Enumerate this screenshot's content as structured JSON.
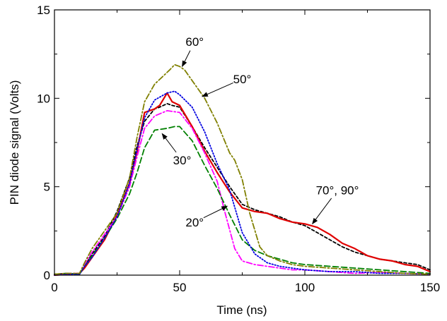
{
  "chart_data": {
    "type": "line",
    "xlabel": "Time (ns)",
    "ylabel": "PIN diode signal (Volts)",
    "xlim": [
      0,
      150
    ],
    "ylim": [
      0,
      15
    ],
    "xticks": [
      0,
      50,
      100,
      150
    ],
    "yticks": [
      0,
      5,
      10,
      15
    ],
    "grid": false,
    "series": [
      {
        "id": "70-90",
        "color": "#000000",
        "style": "dash-short",
        "x": [
          0,
          5,
          10,
          12,
          15,
          20,
          25,
          30,
          33,
          36,
          40,
          42,
          45,
          47,
          50,
          55,
          60,
          65,
          70,
          75,
          80,
          85,
          90,
          95,
          100,
          105,
          110,
          115,
          120,
          125,
          130,
          135,
          140,
          145,
          150
        ],
        "y": [
          0.05,
          0.1,
          0.05,
          0.5,
          1.2,
          2.2,
          3.6,
          5.5,
          7.3,
          8.7,
          9.4,
          9.5,
          9.7,
          9.6,
          9.5,
          8.4,
          7.2,
          6.1,
          5.0,
          4.0,
          3.7,
          3.5,
          3.3,
          3.0,
          2.8,
          2.4,
          2.0,
          1.6,
          1.3,
          1.1,
          0.9,
          0.8,
          0.7,
          0.6,
          0.3
        ]
      },
      {
        "id": "70-90b",
        "color": "#e00000",
        "style": "solid",
        "x": [
          0,
          5,
          10,
          12,
          15,
          20,
          25,
          30,
          33,
          36,
          40,
          42,
          45,
          47,
          50,
          55,
          60,
          65,
          70,
          75,
          80,
          85,
          90,
          95,
          100,
          105,
          110,
          115,
          120,
          125,
          130,
          135,
          140,
          145,
          150
        ],
        "y": [
          0.0,
          0.05,
          0.1,
          0.4,
          1.0,
          2.0,
          3.4,
          5.2,
          7.0,
          9.2,
          9.4,
          9.6,
          10.3,
          9.8,
          9.6,
          8.4,
          7.0,
          5.8,
          4.7,
          3.8,
          3.6,
          3.5,
          3.2,
          3.0,
          2.9,
          2.7,
          2.3,
          1.8,
          1.5,
          1.1,
          0.9,
          0.8,
          0.6,
          0.5,
          0.2
        ]
      },
      {
        "id": "20",
        "color": "#ff00ff",
        "style": "dash-dot",
        "x": [
          0,
          5,
          10,
          12,
          15,
          20,
          25,
          30,
          33,
          36,
          40,
          45,
          50,
          55,
          60,
          65,
          68,
          72,
          75,
          80,
          85,
          90,
          95,
          100,
          110,
          120,
          130,
          140,
          150
        ],
        "y": [
          0.05,
          0.1,
          0.1,
          0.6,
          1.3,
          2.3,
          3.3,
          5.0,
          6.7,
          8.3,
          9.0,
          9.3,
          9.2,
          8.3,
          6.9,
          5.3,
          3.6,
          1.5,
          0.8,
          0.6,
          0.5,
          0.4,
          0.3,
          0.3,
          0.2,
          0.1,
          0.15,
          0.1,
          0.05
        ]
      },
      {
        "id": "30",
        "color": "#008000",
        "style": "dash-long",
        "x": [
          0,
          5,
          10,
          12,
          15,
          20,
          25,
          30,
          33,
          36,
          40,
          45,
          48,
          50,
          55,
          60,
          65,
          70,
          75,
          80,
          85,
          90,
          95,
          100,
          110,
          120,
          130,
          140,
          150
        ],
        "y": [
          0.05,
          0.1,
          0.05,
          0.5,
          1.1,
          2.1,
          3.2,
          4.6,
          5.8,
          7.2,
          8.2,
          8.3,
          8.4,
          8.4,
          7.6,
          6.2,
          4.9,
          3.4,
          2.0,
          1.4,
          1.1,
          0.9,
          0.7,
          0.6,
          0.5,
          0.4,
          0.3,
          0.2,
          0.1
        ]
      },
      {
        "id": "50",
        "color": "#0000e0",
        "style": "dot",
        "x": [
          0,
          5,
          10,
          12,
          15,
          20,
          25,
          30,
          33,
          36,
          40,
          45,
          48,
          50,
          55,
          60,
          65,
          70,
          75,
          80,
          85,
          90,
          95,
          100,
          110,
          120,
          130,
          140,
          150
        ],
        "y": [
          0.0,
          0.05,
          0.05,
          0.5,
          1.0,
          2.1,
          3.3,
          5.2,
          7.1,
          8.9,
          9.9,
          10.3,
          10.4,
          10.2,
          9.5,
          8.1,
          6.3,
          4.8,
          2.4,
          1.2,
          0.7,
          0.5,
          0.4,
          0.3,
          0.2,
          0.2,
          0.1,
          0.1,
          0.05
        ]
      },
      {
        "id": "60",
        "color": "#808000",
        "style": "dash-dot",
        "x": [
          0,
          5,
          10,
          12,
          15,
          20,
          25,
          30,
          33,
          36,
          40,
          43,
          46,
          48,
          50,
          52,
          55,
          60,
          65,
          70,
          72,
          75,
          78,
          82,
          85,
          90,
          95,
          100,
          110,
          120,
          130,
          140,
          150
        ],
        "y": [
          0.05,
          0.1,
          0.1,
          0.7,
          1.5,
          2.5,
          3.5,
          5.5,
          7.8,
          9.8,
          10.8,
          11.2,
          11.6,
          11.9,
          11.8,
          11.6,
          11.0,
          10.0,
          8.6,
          6.9,
          6.5,
          5.4,
          3.5,
          1.6,
          1.1,
          0.8,
          0.6,
          0.5,
          0.4,
          0.3,
          0.2,
          0.1,
          0.05
        ]
      }
    ],
    "annotations": [
      {
        "text": "60°",
        "x": 56,
        "y": 13.2,
        "arrow_to": [
          51,
          11.8
        ]
      },
      {
        "text": "50°",
        "x": 75,
        "y": 11.1,
        "arrow_to": [
          59,
          10.1
        ]
      },
      {
        "text": "30°",
        "x": 51,
        "y": 6.5,
        "arrow_to": [
          43,
          8.0
        ]
      },
      {
        "text": "20°",
        "x": 56,
        "y": 3.0,
        "arrow_to": [
          69,
          3.9
        ]
      },
      {
        "text": "70°, 90°",
        "x": 113,
        "y": 4.8,
        "arrow_to": [
          103,
          2.9
        ]
      }
    ]
  }
}
